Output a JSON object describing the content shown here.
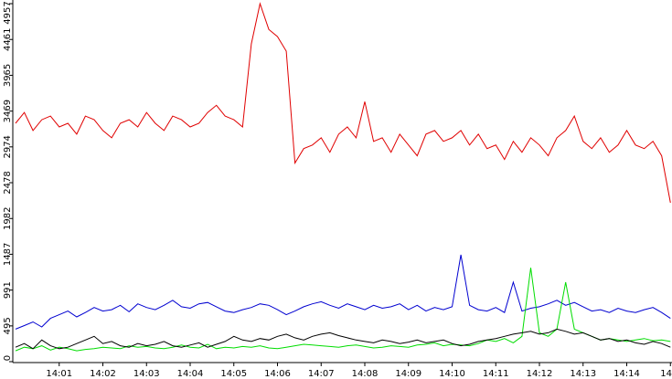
{
  "chart_data": {
    "type": "line",
    "categories": [
      null,
      null,
      null,
      null,
      null,
      "14:01",
      null,
      null,
      null,
      null,
      "14:02",
      null,
      null,
      null,
      null,
      "14:03",
      null,
      null,
      null,
      null,
      "14:04",
      null,
      null,
      null,
      null,
      "14:05",
      null,
      null,
      null,
      null,
      "14:06",
      null,
      null,
      null,
      null,
      "14:07",
      null,
      null,
      null,
      null,
      "14:08",
      null,
      null,
      null,
      null,
      "14:09",
      null,
      null,
      null,
      null,
      "14:10",
      null,
      null,
      null,
      null,
      "14:11",
      null,
      null,
      null,
      null,
      "14:12",
      null,
      null,
      null,
      null,
      "14:13",
      null,
      null,
      null,
      null,
      "14:14",
      null,
      null,
      null,
      null,
      "14"
    ],
    "series": [
      {
        "color": "#e00000",
        "values": [
          3300,
          3450,
          3200,
          3350,
          3400,
          3250,
          3300,
          3150,
          3400,
          3350,
          3200,
          3100,
          3300,
          3350,
          3250,
          3450,
          3300,
          3200,
          3400,
          3350,
          3250,
          3300,
          3450,
          3550,
          3400,
          3350,
          3250,
          4400,
          4957,
          4600,
          4500,
          4300,
          2750,
          2950,
          3000,
          3100,
          2900,
          3150,
          3250,
          3100,
          3600,
          3050,
          3100,
          2900,
          3150,
          3000,
          2850,
          3150,
          3200,
          3050,
          3100,
          3200,
          3000,
          3150,
          2950,
          3000,
          2800,
          3050,
          2900,
          3100,
          3000,
          2850,
          3100,
          3200,
          3400,
          3050,
          2950,
          3100,
          2900,
          3000,
          3200,
          3000,
          2950,
          3050,
          2850,
          2200
        ]
      },
      {
        "color": "#0000d0",
        "values": [
          450,
          500,
          550,
          480,
          600,
          650,
          700,
          620,
          680,
          750,
          700,
          720,
          780,
          690,
          800,
          750,
          720,
          780,
          850,
          760,
          740,
          800,
          820,
          760,
          700,
          680,
          720,
          750,
          800,
          780,
          720,
          650,
          700,
          760,
          800,
          830,
          780,
          740,
          800,
          760,
          720,
          780,
          740,
          760,
          800,
          720,
          780,
          700,
          750,
          720,
          760,
          1480,
          780,
          720,
          700,
          750,
          680,
          1100,
          700,
          740,
          760,
          800,
          850,
          780,
          820,
          760,
          700,
          720,
          680,
          740,
          700,
          680,
          720,
          750,
          680,
          600
        ]
      },
      {
        "color": "#00dd00",
        "values": [
          150,
          200,
          180,
          220,
          160,
          200,
          180,
          150,
          170,
          180,
          200,
          190,
          180,
          220,
          200,
          210,
          190,
          180,
          200,
          230,
          200,
          190,
          240,
          180,
          200,
          190,
          210,
          200,
          220,
          190,
          180,
          200,
          220,
          240,
          230,
          220,
          210,
          200,
          220,
          230,
          210,
          190,
          200,
          220,
          210,
          200,
          230,
          240,
          260,
          220,
          240,
          230,
          220,
          250,
          300,
          280,
          320,
          260,
          350,
          1300,
          400,
          350,
          450,
          1100,
          450,
          400,
          350,
          300,
          320,
          300,
          280,
          300,
          320,
          290,
          300,
          280
        ]
      },
      {
        "color": "#000000",
        "values": [
          200,
          250,
          180,
          300,
          220,
          180,
          200,
          250,
          300,
          350,
          250,
          280,
          220,
          200,
          250,
          220,
          240,
          280,
          220,
          200,
          230,
          260,
          200,
          240,
          280,
          350,
          300,
          280,
          320,
          300,
          350,
          380,
          330,
          300,
          350,
          380,
          400,
          360,
          330,
          300,
          280,
          260,
          300,
          280,
          250,
          270,
          300,
          260,
          280,
          300,
          250,
          220,
          240,
          280,
          300,
          320,
          350,
          380,
          400,
          420,
          380,
          400,
          450,
          420,
          380,
          400,
          350,
          300,
          320,
          280,
          300,
          260,
          240,
          280,
          250,
          200
        ]
      }
    ],
    "ylim": [
      0,
      4957
    ],
    "yticks": [
      0,
      495,
      991,
      1487,
      1982,
      2478,
      2974,
      3469,
      3965,
      4461,
      4957
    ]
  }
}
